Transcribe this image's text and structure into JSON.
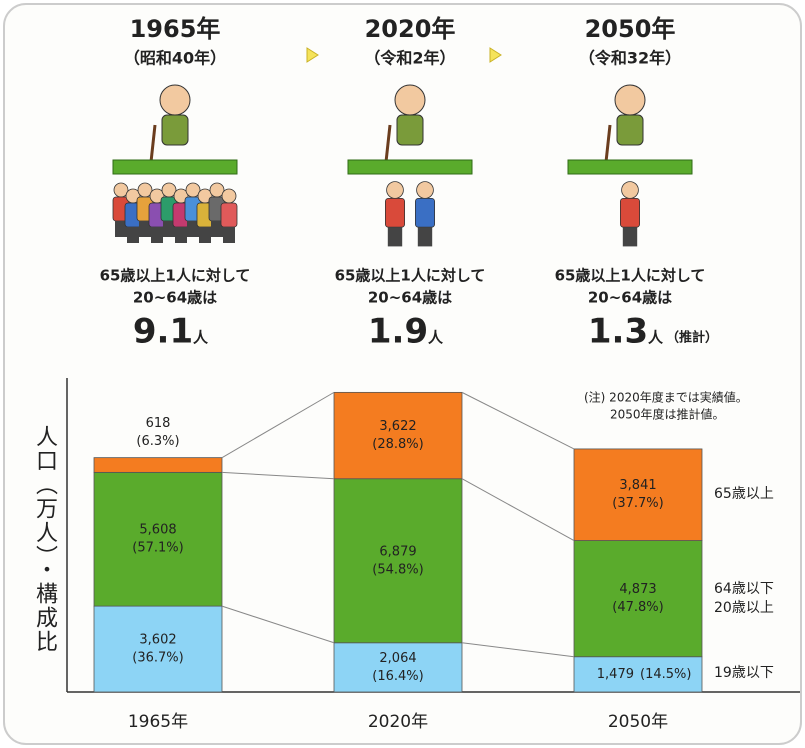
{
  "panels": [
    {
      "year": "1965年",
      "era": "（昭和40年）",
      "line1": "65歳以上1人に対して",
      "line2": "20~64歳は",
      "ratio": 9.1,
      "unit": "人"
    },
    {
      "year": "2020年",
      "era": "（令和2年）",
      "line1": "65歳以上1人に対して",
      "line2": "20~64歳は",
      "ratio": 1.9,
      "unit": "人"
    },
    {
      "year": "2050年",
      "era": "（令和32年）",
      "line1": "65歳以上1人に対して",
      "line2": "20~64歳は",
      "ratio": 1.3,
      "unit": "人",
      "note": "（推計）"
    }
  ],
  "chart_data": {
    "type": "bar",
    "stacked": true,
    "categories": [
      "1965年",
      "2020年",
      "2050年"
    ],
    "ylabel": "人口（万人）・構成比",
    "ylim": [
      0,
      13000
    ],
    "note": [
      "(注) 2020年度までは実績値。",
      "2050年度は推計値。"
    ],
    "series": [
      {
        "name": "19歳以下",
        "color": "#8dd4f5",
        "values": [
          3602,
          2064,
          1479
        ],
        "value_labels": [
          "3,602",
          "2,064",
          "1,479"
        ],
        "percent_labels": [
          "(36.7%)",
          "(16.4%)",
          "(14.5%)"
        ]
      },
      {
        "name": "64歳以下 20歳以上",
        "color": "#5aab2c",
        "values": [
          5608,
          6879,
          4873
        ],
        "value_labels": [
          "5,608",
          "6,879",
          "4,873"
        ],
        "percent_labels": [
          "(57.1%)",
          "(54.8%)",
          "(47.8%)"
        ]
      },
      {
        "name": "65歳以上",
        "color": "#f47c20",
        "values": [
          618,
          3622,
          3841
        ],
        "value_labels": [
          "618",
          "3,622",
          "3,841"
        ],
        "percent_labels": [
          "(6.3%)",
          "(28.8%)",
          "(37.7%)"
        ]
      }
    ]
  }
}
